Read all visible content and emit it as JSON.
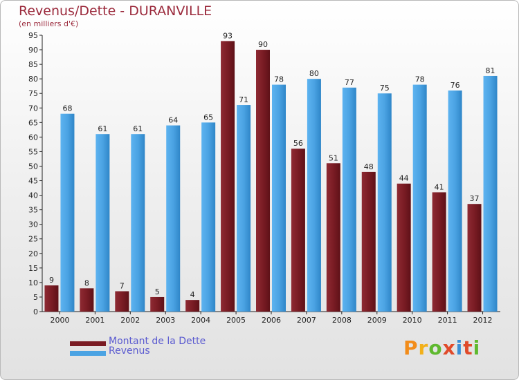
{
  "title": "Revenus/Dette - DURANVILLE",
  "subtitle": "(en milliers d'€)",
  "logo": "Proxiti",
  "colors": {
    "dette": "#7a1c24",
    "revenus": "#4ba3e3",
    "axis": "#222222"
  },
  "legend": [
    {
      "label": "Montant de la Dette",
      "color": "#7a1c24"
    },
    {
      "label": "Revenus",
      "color": "#4ba3e3"
    }
  ],
  "chart_data": {
    "type": "bar",
    "title": "Revenus/Dette - DURANVILLE",
    "subtitle": "(en milliers d'€)",
    "categories": [
      "2000",
      "2001",
      "2002",
      "2003",
      "2004",
      "2005",
      "2006",
      "2007",
      "2008",
      "2009",
      "2010",
      "2011",
      "2012"
    ],
    "series": [
      {
        "name": "Montant de la Dette",
        "values": [
          9,
          8,
          7,
          5,
          4,
          93,
          90,
          56,
          51,
          48,
          44,
          41,
          37
        ]
      },
      {
        "name": "Revenus",
        "values": [
          68,
          61,
          61,
          64,
          65,
          71,
          78,
          80,
          77,
          75,
          78,
          76,
          81
        ]
      }
    ],
    "ylim": [
      0,
      95
    ],
    "yticks": [
      0,
      5,
      10,
      15,
      20,
      25,
      30,
      35,
      40,
      45,
      50,
      55,
      60,
      65,
      70,
      75,
      80,
      85,
      90,
      95
    ],
    "grid": false,
    "legend_position": "bottom-left"
  }
}
